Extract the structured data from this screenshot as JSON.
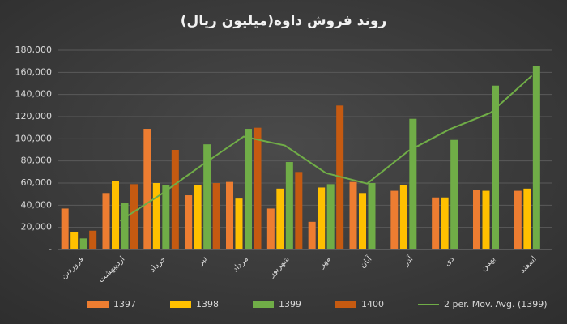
{
  "chart_data": {
    "type": "bar",
    "title": "روند فروش داوه(میلیون ریال)",
    "categories": [
      "فروردین",
      "اردیبهشت",
      "خرداد",
      "تیر",
      "مرداد",
      "شهریور",
      "مهر",
      "آبان",
      "آذر",
      "دی",
      "بهمن",
      "اسفند"
    ],
    "series": [
      {
        "name": "1397",
        "color": "#ed7d31",
        "values": [
          37000,
          51000,
          109000,
          49000,
          61000,
          37000,
          25000,
          61000,
          53000,
          47000,
          54000,
          53000
        ]
      },
      {
        "name": "1398",
        "color": "#ffc000",
        "values": [
          16000,
          62000,
          60000,
          58000,
          46000,
          55000,
          56000,
          51000,
          58000,
          47000,
          53000,
          55000
        ]
      },
      {
        "name": "1399",
        "color": "#70ad47",
        "values": [
          10000,
          42000,
          58000,
          95000,
          109000,
          79000,
          59000,
          60000,
          118000,
          99000,
          148000,
          166000
        ]
      },
      {
        "name": "1400",
        "color": "#c55a11",
        "values": [
          17000,
          59000,
          90000,
          60000,
          110000,
          70000,
          130000,
          null,
          null,
          null,
          null,
          null
        ]
      },
      {
        "name": "2 per. Mov. Avg. (1399)",
        "color": "#70ad47",
        "type": "line",
        "values": [
          null,
          26000,
          50000,
          76500,
          102000,
          94000,
          69000,
          59500,
          89000,
          108500,
          123500,
          157000
        ]
      }
    ],
    "ylim": [
      0,
      180000
    ],
    "yticks": [
      {
        "value": 0,
        "label": "-"
      },
      {
        "value": 20000,
        "label": "20,000"
      },
      {
        "value": 40000,
        "label": "40,000"
      },
      {
        "value": 60000,
        "label": "60,000"
      },
      {
        "value": 80000,
        "label": "80,000"
      },
      {
        "value": 100000,
        "label": "100,000"
      },
      {
        "value": 120000,
        "label": "120,000"
      },
      {
        "value": 140000,
        "label": "140,000"
      },
      {
        "value": 160000,
        "label": "160,000"
      },
      {
        "value": 180000,
        "label": "180,000"
      }
    ],
    "grid": true,
    "legend": "bottom"
  }
}
